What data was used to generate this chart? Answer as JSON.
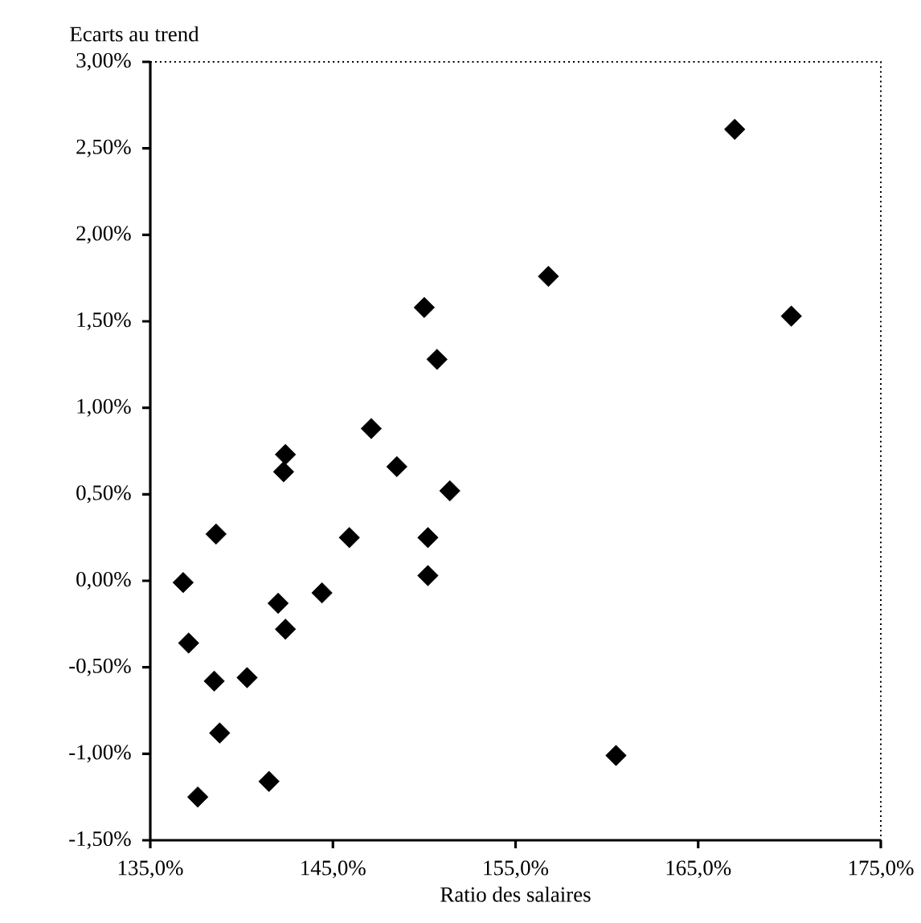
{
  "chart_data": {
    "type": "scatter",
    "ylabel": "Ecarts au trend",
    "xlabel": "Ratio des salaires",
    "x": [
      167.0,
      170.1,
      156.8,
      150.0,
      150.7,
      147.1,
      148.5,
      151.4,
      142.4,
      142.3,
      138.6,
      145.9,
      150.2,
      150.2,
      136.8,
      142.0,
      144.4,
      142.4,
      137.1,
      138.5,
      140.3,
      138.8,
      141.5,
      137.6,
      160.5
    ],
    "values": [
      2.61,
      1.53,
      1.76,
      1.58,
      1.28,
      0.88,
      0.66,
      0.52,
      0.73,
      0.63,
      0.27,
      0.25,
      0.25,
      0.03,
      -0.01,
      -0.13,
      -0.07,
      -0.28,
      -0.36,
      -0.58,
      -0.56,
      -0.88,
      -1.16,
      -1.25,
      -1.01
    ],
    "color": "#000000",
    "marker": "diamond",
    "grid": false,
    "xlim": [
      135,
      175
    ],
    "ylim": [
      -1.5,
      3.0
    ],
    "xticks": [
      {
        "value": 135,
        "label": "135,0%"
      },
      {
        "value": 145,
        "label": "145,0%"
      },
      {
        "value": 155,
        "label": "155,0%"
      },
      {
        "value": 165,
        "label": "165,0%"
      },
      {
        "value": 175,
        "label": "175,0%"
      }
    ],
    "yticks": [
      {
        "value": -1.5,
        "label": "-1,50%"
      },
      {
        "value": -1.0,
        "label": "-1,00%"
      },
      {
        "value": -0.5,
        "label": "-0,50%"
      },
      {
        "value": 0.0,
        "label": "0,00%"
      },
      {
        "value": 0.5,
        "label": "0,50%"
      },
      {
        "value": 1.0,
        "label": "1,00%"
      },
      {
        "value": 1.5,
        "label": "1,50%"
      },
      {
        "value": 2.0,
        "label": "2,00%"
      },
      {
        "value": 2.5,
        "label": "2,50%"
      },
      {
        "value": 3.0,
        "label": "3,00%"
      }
    ]
  }
}
